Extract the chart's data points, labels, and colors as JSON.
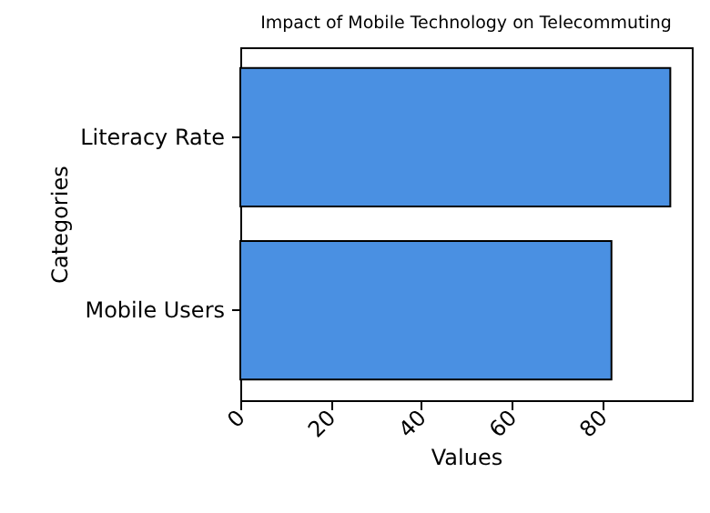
{
  "chart_data": {
    "type": "bar",
    "orientation": "horizontal",
    "title": "Impact of Mobile Technology on Telecommuting",
    "xlabel": "Values",
    "ylabel": "Categories",
    "categories": [
      "Literacy Rate",
      "Mobile Users"
    ],
    "values": [
      95,
      82
    ],
    "color": "#4a90e2",
    "xlim": [
      0,
      99.75
    ],
    "xticks": [
      0,
      20,
      40,
      60,
      80
    ],
    "grid": false
  }
}
